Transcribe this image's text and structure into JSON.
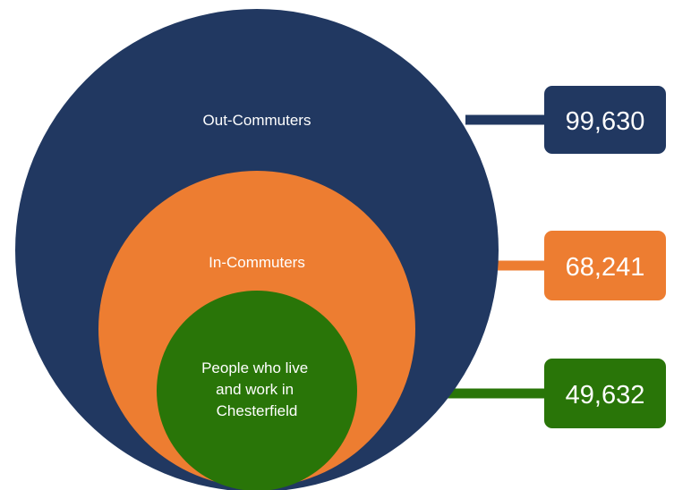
{
  "colors": {
    "out": "#213861",
    "in": "#ed7d31",
    "live": "#297508"
  },
  "groups": [
    {
      "id": "out",
      "label_lines": [
        "Out-Commuters"
      ],
      "value": "99,630",
      "color": "#213861"
    },
    {
      "id": "in",
      "label_lines": [
        "In-Commuters"
      ],
      "value": "68,241",
      "color": "#ed7d31"
    },
    {
      "id": "live",
      "label_lines": [
        "People who live",
        "and work in",
        "Chesterfield"
      ],
      "value": "49,632",
      "color": "#297508"
    }
  ]
}
